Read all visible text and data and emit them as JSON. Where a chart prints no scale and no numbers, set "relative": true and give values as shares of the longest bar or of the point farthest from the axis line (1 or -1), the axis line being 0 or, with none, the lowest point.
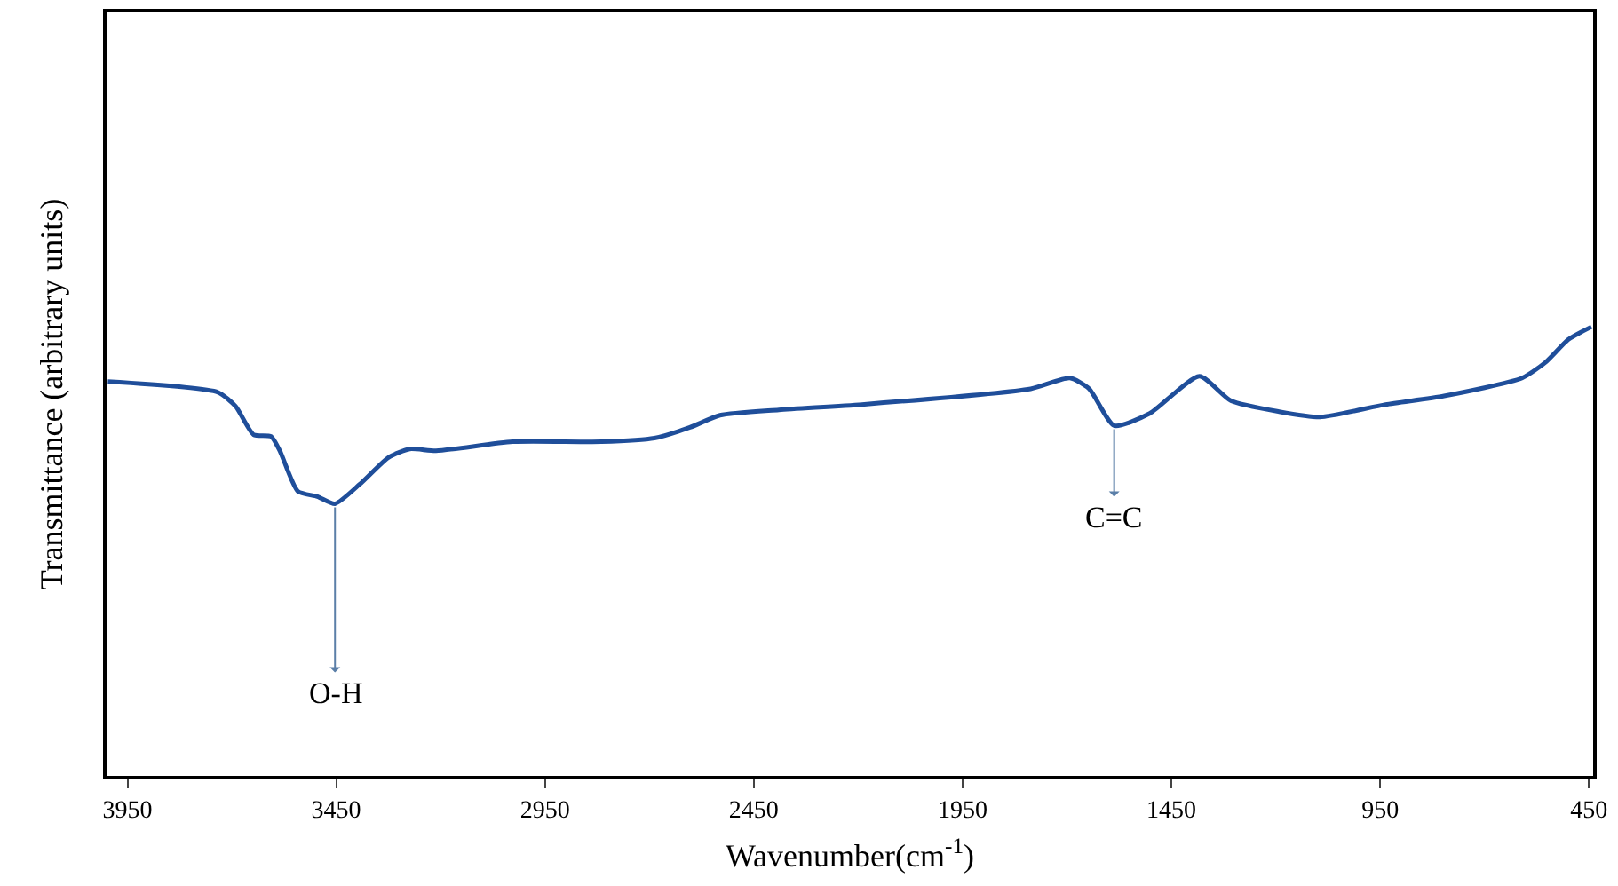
{
  "chart_data": {
    "type": "line",
    "relative": true,
    "xlabel": "Wavenumber(cm$^{-1}$)",
    "ylabel": "Transmittance (arbitrary units)",
    "xlim": [
      4000,
      440
    ],
    "xticks": [
      3950,
      3450,
      2950,
      2450,
      1950,
      1450,
      950,
      450
    ],
    "marker": "none",
    "line_style": "solid",
    "series": [
      {
        "color": "#1f4e9a",
        "x": [
          3997,
          3733,
          3691,
          3648,
          3606,
          3585,
          3542,
          3495,
          3453,
          3393,
          3325,
          3274,
          3211,
          3028,
          2815,
          2688,
          2603,
          2531,
          2390,
          2191,
          1787,
          1693,
          1647,
          1587,
          1502,
          1383,
          1307,
          1192,
          1094,
          937,
          797,
          610,
          554,
          499,
          444
        ],
        "values": [
          0.878,
          0.854,
          0.823,
          0.76,
          0.756,
          0.724,
          0.634,
          0.622,
          0.606,
          0.65,
          0.709,
          0.728,
          0.724,
          0.744,
          0.744,
          0.752,
          0.776,
          0.803,
          0.815,
          0.827,
          0.862,
          0.886,
          0.862,
          0.78,
          0.807,
          0.89,
          0.835,
          0.811,
          0.799,
          0.827,
          0.846,
          0.886,
          0.921,
          0.972,
          1.0
        ]
      }
    ],
    "annotations": [
      {
        "text": "O-H",
        "x": 3453,
        "y": 0.606
      },
      {
        "text": "C=C",
        "x": 1587,
        "y": 0.78
      }
    ]
  }
}
